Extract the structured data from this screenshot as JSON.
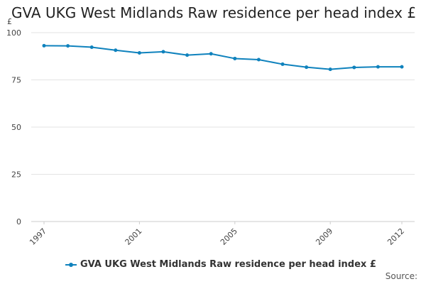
{
  "chart_data": {
    "type": "line",
    "title": "GVA UKG West Midlands Raw residence per head index £",
    "ylabel": "£",
    "xlabel": "",
    "ylim": [
      0,
      100
    ],
    "y_ticks": [
      0,
      25,
      50,
      75,
      100
    ],
    "x": [
      1997,
      1998,
      1999,
      2000,
      2001,
      2002,
      2003,
      2004,
      2005,
      2006,
      2007,
      2008,
      2009,
      2010,
      2011,
      2012
    ],
    "x_tick_labels": [
      "1997",
      "2001",
      "2005",
      "2009",
      "2012"
    ],
    "series": [
      {
        "name": "GVA UKG West Midlands Raw residence per head index £",
        "color": "#0f82bd",
        "values": [
          93.1,
          93.0,
          92.3,
          90.7,
          89.3,
          89.9,
          88.1,
          88.8,
          86.3,
          85.7,
          83.3,
          81.7,
          80.6,
          81.6,
          81.9,
          81.9
        ]
      }
    ],
    "grid": true,
    "legend_position": "bottom"
  },
  "footer": {
    "source_label": "Source:"
  }
}
